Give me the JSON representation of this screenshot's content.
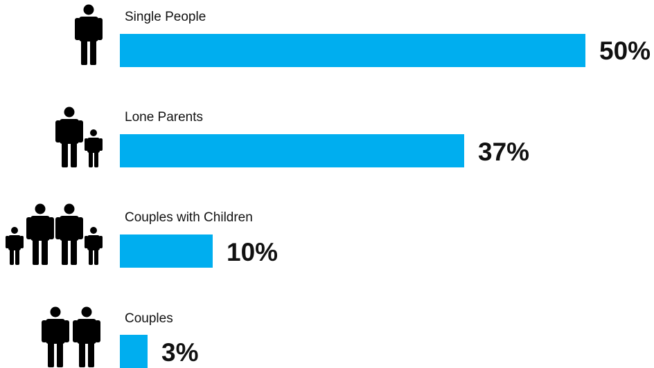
{
  "chart_data": {
    "type": "bar",
    "orientation": "horizontal",
    "categories": [
      "Single People",
      "Lone Parents",
      "Couples with Children",
      "Couples"
    ],
    "values": [
      50,
      37,
      10,
      3
    ],
    "value_labels": [
      "50%",
      "37%",
      "10%",
      "3%"
    ],
    "unit": "%",
    "title": "",
    "xlabel": "",
    "ylabel": "",
    "xlim": [
      0,
      50
    ],
    "grid": false,
    "legend": "none",
    "icons": [
      "single-person-icon",
      "adult-and-child-icon",
      "family-with-children-icon",
      "couple-icon"
    ]
  },
  "colors": {
    "bar": "#00aeef",
    "icon": "#000000",
    "text": "#111111"
  }
}
